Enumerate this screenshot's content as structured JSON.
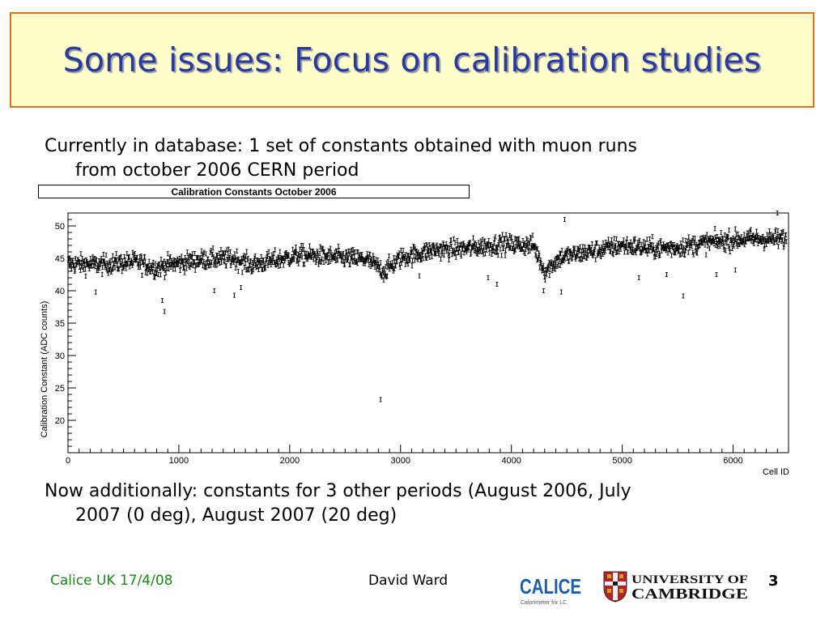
{
  "slide": {
    "title": "Some issues: Focus on calibration studies",
    "bullet1_line1": "Currently in database: 1 set of constants obtained with muon runs",
    "bullet1_line2": "from october 2006 CERN period",
    "bullet2_line1": "Now additionally: constants for 3 other periods (August 2006, July",
    "bullet2_line2": "2007 (0 deg), August 2007 (20 deg)"
  },
  "footer": {
    "left": "Calice UK 17/4/08",
    "center": "David Ward",
    "page": "3"
  },
  "logos": {
    "calice_text": "CALICE",
    "calice_sub": "Calorimeter for LC",
    "cambridge_line1": "UNIVERSITY OF",
    "cambridge_line2": "CAMBRIDGE"
  },
  "chart_data": {
    "type": "scatter",
    "title": "Calibration Constants October 2006",
    "xlabel": "Cell ID",
    "ylabel": "Calibration Constant (ADC counts)",
    "xlim": [
      0,
      6500
    ],
    "ylim": [
      15,
      52
    ],
    "xticks": [
      0,
      1000,
      2000,
      3000,
      4000,
      5000,
      6000
    ],
    "yticks": [
      20,
      25,
      30,
      35,
      40,
      45,
      50
    ],
    "error_bars": true,
    "grid": false,
    "trend": [
      [
        0,
        44.2
      ],
      [
        300,
        44.0
      ],
      [
        600,
        44.5
      ],
      [
        800,
        43.5
      ],
      [
        900,
        44.0
      ],
      [
        1200,
        44.8
      ],
      [
        1500,
        45.0
      ],
      [
        1650,
        44.0
      ],
      [
        1800,
        44.5
      ],
      [
        2100,
        45.5
      ],
      [
        2400,
        45.2
      ],
      [
        2700,
        44.8
      ],
      [
        2850,
        43.0
      ],
      [
        3000,
        45.0
      ],
      [
        3300,
        46.3
      ],
      [
        3600,
        46.5
      ],
      [
        3900,
        47.2
      ],
      [
        4200,
        47.0
      ],
      [
        4300,
        43.0
      ],
      [
        4450,
        45.2
      ],
      [
        4700,
        46.0
      ],
      [
        5000,
        47.0
      ],
      [
        5300,
        46.5
      ],
      [
        5500,
        46.7
      ],
      [
        5800,
        47.5
      ],
      [
        6100,
        48.0
      ],
      [
        6500,
        48.0
      ]
    ],
    "outliers": [
      [
        250,
        39.8
      ],
      [
        850,
        38.5
      ],
      [
        870,
        36.8
      ],
      [
        1320,
        40.0
      ],
      [
        1500,
        39.3
      ],
      [
        1560,
        40.5
      ],
      [
        2820,
        23.2
      ],
      [
        3170,
        42.3
      ],
      [
        3790,
        42.0
      ],
      [
        3870,
        41.0
      ],
      [
        4290,
        40.0
      ],
      [
        4450,
        39.8
      ],
      [
        4480,
        51.0
      ],
      [
        5150,
        42.0
      ],
      [
        5400,
        42.5
      ],
      [
        5550,
        39.2
      ],
      [
        5850,
        42.5
      ],
      [
        6020,
        43.2
      ],
      [
        6400,
        52.0
      ]
    ]
  }
}
